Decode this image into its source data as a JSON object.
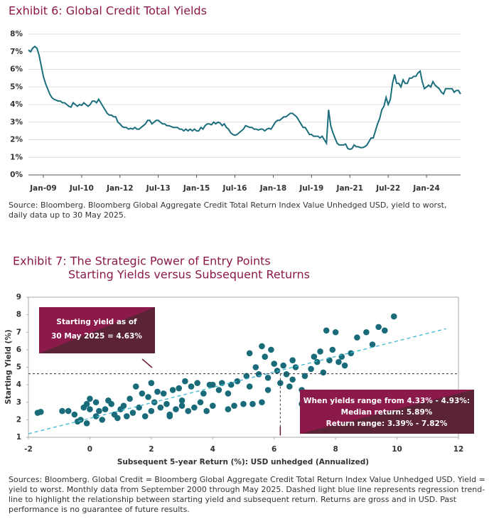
{
  "chart_data": [
    {
      "type": "line",
      "title": "Exhibit 6: Global Credit Total Yields",
      "note": "Source: Bloomberg. Bloomberg Global Aggregate Credit Total Return Index Value Unhedged USD, yield to worst, daily data up to 30 May 2025.",
      "color": "#1c6e7d",
      "xlim": [
        "2008-06",
        "2025-05"
      ],
      "xticks": [
        {
          "value": "2009-01",
          "label": "Jan-09"
        },
        {
          "value": "2010-07",
          "label": "Jul-10"
        },
        {
          "value": "2012-01",
          "label": "Jan-12"
        },
        {
          "value": "2013-07",
          "label": "Jul-13"
        },
        {
          "value": "2015-01",
          "label": "Jan-15"
        },
        {
          "value": "2016-07",
          "label": "Jul-16"
        },
        {
          "value": "2018-01",
          "label": "Jan-18"
        },
        {
          "value": "2019-07",
          "label": "Jul-19"
        },
        {
          "value": "2021-01",
          "label": "Jan-21"
        },
        {
          "value": "2022-07",
          "label": "Jul-22"
        },
        {
          "value": "2024-01",
          "label": "Jan-24"
        }
      ],
      "ylim": [
        0,
        8
      ],
      "yticks": [
        {
          "value": 0,
          "label": "0%"
        },
        {
          "value": 1,
          "label": "1%"
        },
        {
          "value": 2,
          "label": "2%"
        },
        {
          "value": 3,
          "label": "3%"
        },
        {
          "value": 4,
          "label": "4%"
        },
        {
          "value": 5,
          "label": "5%"
        },
        {
          "value": 6,
          "label": "6%"
        },
        {
          "value": 7,
          "label": "7%"
        },
        {
          "value": 8,
          "label": "8%"
        }
      ],
      "grid": true,
      "x": [
        "2008-06",
        "2008-07",
        "2008-08",
        "2008-09",
        "2008-10",
        "2008-11",
        "2008-12",
        "2009-01",
        "2009-02",
        "2009-03",
        "2009-04",
        "2009-05",
        "2009-06",
        "2009-07",
        "2009-08",
        "2009-09",
        "2009-10",
        "2009-11",
        "2009-12",
        "2010-01",
        "2010-02",
        "2010-03",
        "2010-04",
        "2010-05",
        "2010-06",
        "2010-07",
        "2010-08",
        "2010-09",
        "2010-10",
        "2010-11",
        "2010-12",
        "2011-01",
        "2011-02",
        "2011-03",
        "2011-04",
        "2011-05",
        "2011-06",
        "2011-07",
        "2011-08",
        "2011-09",
        "2011-10",
        "2011-11",
        "2011-12",
        "2012-01",
        "2012-02",
        "2012-03",
        "2012-04",
        "2012-05",
        "2012-06",
        "2012-07",
        "2012-08",
        "2012-09",
        "2012-10",
        "2012-11",
        "2012-12",
        "2013-01",
        "2013-02",
        "2013-03",
        "2013-04",
        "2013-05",
        "2013-06",
        "2013-07",
        "2013-08",
        "2013-09",
        "2013-10",
        "2013-11",
        "2013-12",
        "2014-01",
        "2014-02",
        "2014-03",
        "2014-04",
        "2014-05",
        "2014-06",
        "2014-07",
        "2014-08",
        "2014-09",
        "2014-10",
        "2014-11",
        "2014-12",
        "2015-01",
        "2015-02",
        "2015-03",
        "2015-04",
        "2015-05",
        "2015-06",
        "2015-07",
        "2015-08",
        "2015-09",
        "2015-10",
        "2015-11",
        "2015-12",
        "2016-01",
        "2016-02",
        "2016-03",
        "2016-04",
        "2016-05",
        "2016-06",
        "2016-07",
        "2016-08",
        "2016-09",
        "2016-10",
        "2016-11",
        "2016-12",
        "2017-01",
        "2017-02",
        "2017-03",
        "2017-04",
        "2017-05",
        "2017-06",
        "2017-07",
        "2017-08",
        "2017-09",
        "2017-10",
        "2017-11",
        "2017-12",
        "2018-01",
        "2018-02",
        "2018-03",
        "2018-04",
        "2018-05",
        "2018-06",
        "2018-07",
        "2018-08",
        "2018-09",
        "2018-10",
        "2018-11",
        "2018-12",
        "2019-01",
        "2019-02",
        "2019-03",
        "2019-04",
        "2019-05",
        "2019-06",
        "2019-07",
        "2019-08",
        "2019-09",
        "2019-10",
        "2019-11",
        "2019-12",
        "2020-01",
        "2020-02",
        "2020-03",
        "2020-04",
        "2020-05",
        "2020-06",
        "2020-07",
        "2020-08",
        "2020-09",
        "2020-10",
        "2020-11",
        "2020-12",
        "2021-01",
        "2021-02",
        "2021-03",
        "2021-04",
        "2021-05",
        "2021-06",
        "2021-07",
        "2021-08",
        "2021-09",
        "2021-10",
        "2021-11",
        "2021-12",
        "2022-01",
        "2022-02",
        "2022-03",
        "2022-04",
        "2022-05",
        "2022-06",
        "2022-07",
        "2022-08",
        "2022-09",
        "2022-10",
        "2022-11",
        "2022-12",
        "2023-01",
        "2023-02",
        "2023-03",
        "2023-04",
        "2023-05",
        "2023-06",
        "2023-07",
        "2023-08",
        "2023-09",
        "2023-10",
        "2023-11",
        "2023-12",
        "2024-01",
        "2024-02",
        "2024-03",
        "2024-04",
        "2024-05",
        "2024-06",
        "2024-07",
        "2024-08",
        "2024-09",
        "2024-10",
        "2024-11",
        "2024-12",
        "2025-01",
        "2025-02",
        "2025-03",
        "2025-04",
        "2025-05"
      ],
      "values": [
        7.1,
        7.0,
        7.2,
        7.3,
        7.2,
        6.8,
        6.2,
        5.6,
        5.2,
        4.9,
        4.6,
        4.4,
        4.3,
        4.25,
        4.2,
        4.2,
        4.1,
        4.1,
        4.0,
        3.9,
        3.85,
        4.1,
        4.0,
        3.9,
        4.0,
        3.95,
        4.1,
        4.0,
        3.9,
        4.0,
        4.2,
        4.2,
        4.1,
        4.3,
        4.1,
        3.9,
        3.7,
        3.5,
        3.4,
        3.4,
        3.3,
        3.3,
        3.0,
        2.9,
        2.75,
        2.7,
        2.7,
        2.6,
        2.65,
        2.6,
        2.7,
        2.6,
        2.6,
        2.7,
        2.8,
        2.9,
        3.1,
        3.1,
        2.9,
        3.0,
        3.1,
        3.1,
        3.0,
        2.9,
        2.9,
        2.8,
        2.8,
        2.75,
        2.7,
        2.7,
        2.7,
        2.6,
        2.6,
        2.5,
        2.6,
        2.5,
        2.6,
        2.5,
        2.6,
        2.5,
        2.5,
        2.7,
        2.6,
        2.8,
        2.9,
        2.9,
        2.85,
        3.0,
        2.9,
        3.0,
        2.95,
        2.8,
        2.9,
        2.7,
        2.6,
        2.4,
        2.3,
        2.25,
        2.3,
        2.4,
        2.5,
        2.6,
        2.8,
        2.75,
        2.7,
        2.7,
        2.6,
        2.6,
        2.55,
        2.6,
        2.6,
        2.5,
        2.6,
        2.65,
        2.6,
        2.8,
        3.0,
        3.1,
        3.1,
        3.2,
        3.3,
        3.3,
        3.4,
        3.5,
        3.5,
        3.4,
        3.3,
        3.1,
        2.9,
        2.7,
        2.7,
        2.5,
        2.3,
        2.3,
        2.2,
        2.2,
        2.2,
        2.1,
        2.2,
        2.0,
        1.8,
        3.7,
        2.8,
        2.4,
        2.1,
        1.8,
        1.7,
        1.7,
        1.7,
        1.75,
        1.5,
        1.45,
        1.5,
        1.7,
        1.6,
        1.6,
        1.55,
        1.55,
        1.6,
        1.7,
        1.9,
        2.1,
        2.1,
        2.5,
        2.9,
        3.2,
        3.7,
        3.9,
        4.4,
        4.0,
        4.3,
        5.2,
        5.7,
        5.2,
        5.2,
        5.0,
        5.4,
        5.2,
        5.2,
        5.5,
        5.5,
        5.6,
        5.6,
        5.8,
        5.9,
        5.3,
        4.9,
        5.0,
        5.1,
        5.0,
        5.3,
        5.1,
        5.0,
        4.9,
        4.7,
        4.6,
        4.9,
        4.9,
        4.9,
        4.9,
        4.7,
        4.8,
        4.8,
        4.6
      ]
    },
    {
      "type": "scatter",
      "title": "Exhibit 7: The Strategic Power of Entry Points",
      "subtitle": "Starting Yields versus Subsequent Returns",
      "xlabel": "Subsequent 5-year Return (%): USD unhedged (Annualized)",
      "ylabel": "Starting Yield (%)",
      "note": "Sources: Bloomberg. Global Credit = Bloomberg Global Aggregate Credit Total Return Index Value Unhedged USD. Yield = yield to worst. Monthly data from September 2000 through May 2025. Dashed light blue line represents regression trend-line to highlight the relationship between starting yield and subsequent return. Returns are gross and in USD. Past performance is no guarantee of future results.",
      "color": "#1a6b7a",
      "xlim": [
        -2,
        12
      ],
      "xticks": [
        -2,
        0,
        2,
        4,
        6,
        8,
        10,
        12
      ],
      "ylim": [
        1,
        9
      ],
      "yticks": [
        1,
        2,
        3,
        4,
        5,
        6,
        7,
        8,
        9
      ],
      "trend": {
        "x": [
          -2,
          11.6
        ],
        "y": [
          1.2,
          7.2
        ],
        "color": "#3bb8d0"
      },
      "hline": 4.63,
      "vline": 6.2,
      "annotations": [
        {
          "lines": [
            "Starting yield as of",
            "30 May 2025 = 4.63%"
          ]
        },
        {
          "lines": [
            "When yields range from 4.33% - 4.93%:",
            "Median return: 5.89%",
            "Return range: 3.39% - 7.82%"
          ]
        }
      ],
      "x": [
        -1.7,
        -1.6,
        -0.9,
        -0.7,
        -0.5,
        -0.4,
        -0.3,
        -0.2,
        -0.1,
        0,
        0,
        -0.1,
        0.2,
        0.2,
        0.4,
        0.5,
        0.6,
        0.7,
        0.8,
        0.9,
        1,
        1.1,
        1.2,
        1.3,
        1.4,
        1.5,
        1.6,
        1.8,
        1.9,
        2.0,
        2.0,
        2.1,
        2.3,
        2.4,
        2.5,
        2.6,
        2.7,
        2.8,
        2.9,
        3.0,
        3.1,
        3.2,
        3.3,
        3.4,
        3.5,
        3.6,
        3.8,
        3.9,
        4.0,
        4.2,
        4.3,
        4.5,
        4.6,
        4.7,
        4.8,
        5.0,
        5.1,
        5.2,
        5.3,
        5.4,
        5.5,
        5.6,
        5.7,
        5.8,
        5.9,
        5.6,
        6.0,
        6.1,
        6.2,
        6.3,
        6.4,
        6.6,
        6.7,
        6.9,
        7.0,
        7.1,
        7.2,
        7.4,
        7.5,
        7.6,
        7.7,
        7.8,
        7.9,
        8.0,
        8.2,
        8.3,
        8.5,
        8.7,
        9.0,
        9.2,
        9.4,
        9.6,
        9.9,
        6.6,
        5.2,
        6.9,
        4.5,
        3.7,
        2.2,
        1.7,
        6.5,
        5.8,
        0.3,
        8.1,
        7.3,
        4.0,
        3.0,
        2.6
      ],
      "values": [
        2.4,
        2.45,
        2.5,
        2.5,
        2.3,
        1.9,
        2.0,
        2.7,
        2.9,
        3.2,
        2.6,
        1.8,
        2.2,
        3.0,
        2.0,
        2.6,
        3.1,
        2.9,
        2.3,
        2.1,
        2.6,
        2.8,
        2.2,
        3.2,
        2.4,
        3.9,
        2.7,
        2.2,
        3.3,
        2.5,
        4.1,
        3.0,
        2.7,
        3.5,
        2.9,
        2.3,
        3.7,
        2.6,
        3.8,
        2.8,
        4.2,
        2.5,
        3.9,
        2.7,
        4.1,
        3.0,
        2.5,
        4.0,
        2.8,
        3.7,
        4.1,
        2.6,
        4.0,
        2.8,
        4.2,
        2.9,
        4.5,
        3.9,
        2.9,
        5.0,
        4.6,
        3.0,
        5.6,
        4.4,
        6.0,
        6.2,
        5.2,
        4.8,
        4.1,
        5.1,
        4.6,
        4.3,
        5.0,
        3.7,
        4.5,
        3.3,
        4.9,
        5.3,
        5.9,
        4.7,
        7.1,
        5.4,
        6.0,
        7.0,
        5.6,
        5.1,
        5.8,
        6.7,
        7.0,
        6.3,
        7.3,
        7.1,
        7.9,
        5.4,
        5.8,
        2.9,
        3.5,
        3.5,
        3.6,
        3.5,
        3.9,
        3.7,
        2.5,
        5.3,
        5.6,
        4.0,
        3.1,
        2.2
      ]
    }
  ]
}
